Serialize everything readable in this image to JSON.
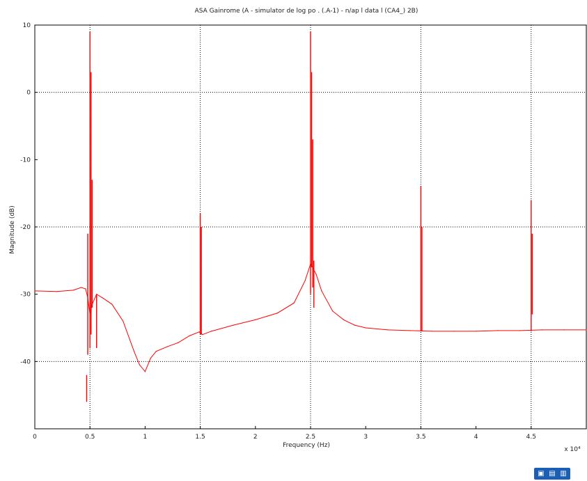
{
  "chart_data": {
    "type": "line",
    "title": "ASA Gainrome (A - simulator de log po . (.A-1) - n/ap l data l (CA4_) 2B)",
    "xlabel": "Frequency (Hz)",
    "ylabel": "Magnitude (dB)",
    "x_exponent_label": "x 10⁴",
    "xlim": [
      0,
      5
    ],
    "ylim": [
      -50,
      10
    ],
    "xticks": [
      0,
      0.5,
      1,
      1.5,
      2,
      2.5,
      3,
      3.5,
      4,
      4.5
    ],
    "xtick_labels": [
      "0",
      "0.5",
      "1",
      "1.5",
      "2",
      "2.5",
      "3",
      "3.5",
      "4",
      "4.5"
    ],
    "yticks": [
      -50,
      -40,
      -30,
      -20,
      -10,
      0,
      10
    ],
    "ytick_labels": [
      "",
      "-40",
      "-30",
      "-20",
      "-10",
      "0",
      "10"
    ],
    "grid": {
      "x_dotted_at": [
        0.5,
        1.5,
        2.5,
        3.5,
        4.5
      ],
      "y_dotted_at": [
        -40,
        -20,
        0
      ]
    },
    "series": [
      {
        "color": "#ff0000",
        "x": [
          0,
          0.2,
          0.35,
          0.42,
          0.46,
          0.48,
          0.5,
          0.52,
          0.56,
          0.62,
          0.7,
          0.8,
          0.9,
          0.95,
          1.0,
          1.05,
          1.1,
          1.2,
          1.3,
          1.4,
          1.49,
          1.52,
          1.6,
          1.8,
          2.0,
          2.2,
          2.35,
          2.45,
          2.5,
          2.55,
          2.6,
          2.7,
          2.8,
          2.9,
          3.0,
          3.2,
          3.4,
          3.6,
          3.8,
          4.0,
          4.2,
          4.4,
          4.6,
          4.8,
          5.0
        ],
        "y": [
          -29.5,
          -29.6,
          -29.4,
          -29.0,
          -29.2,
          -30.5,
          -33,
          -31.5,
          -30.0,
          -30.6,
          -31.5,
          -34.0,
          -38.5,
          -40.5,
          -41.5,
          -39.5,
          -38.5,
          -37.8,
          -37.2,
          -36.2,
          -35.6,
          -36.0,
          -35.5,
          -34.6,
          -33.8,
          -32.8,
          -31.3,
          -28.0,
          -25.5,
          -27.0,
          -29.5,
          -32.5,
          -33.8,
          -34.6,
          -35.0,
          -35.3,
          -35.4,
          -35.5,
          -35.5,
          -35.5,
          -35.4,
          -35.4,
          -35.3,
          -35.3,
          -35.3
        ]
      }
    ],
    "spikes": [
      {
        "x": 0.5,
        "y_low": -38,
        "y_high": 9
      },
      {
        "x": 0.51,
        "y_low": -36,
        "y_high": 3
      },
      {
        "x": 0.48,
        "y_low": -39,
        "y_high": -21
      },
      {
        "x": 0.52,
        "y_low": -32,
        "y_high": -13
      },
      {
        "x": 0.47,
        "y_low": -46,
        "y_high": -42
      },
      {
        "x": 0.56,
        "y_low": -38,
        "y_high": -30
      },
      {
        "x": 1.5,
        "y_low": -36,
        "y_high": -18
      },
      {
        "x": 1.51,
        "y_low": -36,
        "y_high": -20
      },
      {
        "x": 2.5,
        "y_low": -30,
        "y_high": 9
      },
      {
        "x": 2.51,
        "y_low": -26,
        "y_high": 3
      },
      {
        "x": 2.52,
        "y_low": -29,
        "y_high": -7
      },
      {
        "x": 2.53,
        "y_low": -32,
        "y_high": -25
      },
      {
        "x": 3.5,
        "y_low": -35.5,
        "y_high": -14
      },
      {
        "x": 3.51,
        "y_low": -35.5,
        "y_high": -20
      },
      {
        "x": 4.5,
        "y_low": -35.5,
        "y_high": -16
      },
      {
        "x": 4.51,
        "y_low": -33,
        "y_high": -21
      }
    ]
  },
  "toolbar": {
    "buttons": [
      {
        "icon": "zoom-icon",
        "glyph": "▣"
      },
      {
        "icon": "pan-icon",
        "glyph": "▤"
      },
      {
        "icon": "save-icon",
        "glyph": "▥"
      }
    ]
  }
}
